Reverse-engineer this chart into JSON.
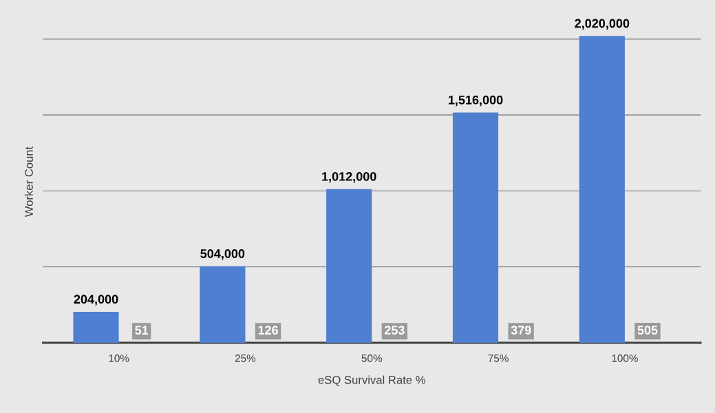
{
  "chart_data": {
    "type": "bar",
    "xlabel": "eSQ Survival Rate %",
    "ylabel": "Worker Count",
    "categories": [
      "10%",
      "25%",
      "50%",
      "75%",
      "100%"
    ],
    "series": [
      {
        "color": "#4f7fd0",
        "values": [
          204000,
          504000,
          1012000,
          1516000,
          2020000
        ],
        "value_labels": [
          "204,000",
          "504,000",
          "1,012,000",
          "1,516,000",
          "2,020,000"
        ]
      },
      {
        "color": "#ffffff",
        "values": [
          51,
          126,
          253,
          379,
          505
        ],
        "value_labels": [
          "51",
          "126",
          "253",
          "379",
          "505"
        ]
      }
    ],
    "yticks": [
      {
        "value": 0,
        "label": null
      },
      {
        "value": 500000,
        "label": null
      },
      {
        "value": 1000000,
        "label": null
      },
      {
        "value": 1500000,
        "label": null
      },
      {
        "value": 2000000,
        "label": null
      }
    ],
    "tick_labels": "x",
    "grid": "y",
    "legend": false
  }
}
